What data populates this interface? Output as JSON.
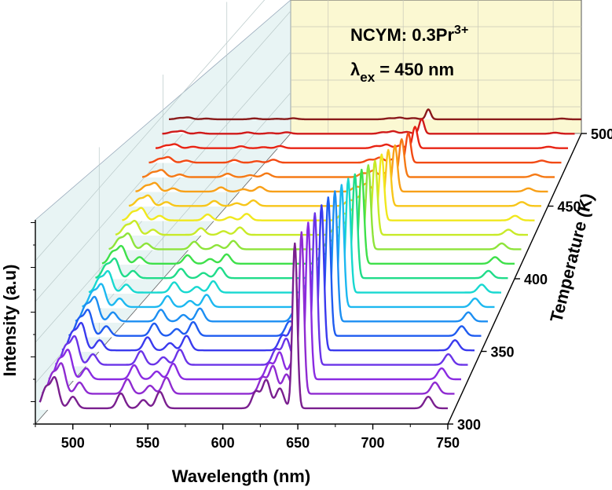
{
  "chart_data": {
    "type": "line",
    "style": "3d-waterfall",
    "xlabel": "Wavelength (nm)",
    "ylabel": "Intensity (a.u)",
    "zlabel": "Temperature (K)",
    "xlim": [
      475,
      750
    ],
    "x_ticks": [
      500,
      550,
      600,
      650,
      700,
      750
    ],
    "z_ticks": [
      300,
      350,
      400,
      450,
      500
    ],
    "zlim": [
      300,
      500
    ],
    "annotations": {
      "line1_main": "NCYM: 0.3Pr",
      "line1_sup": "3+",
      "line2_lambda": "λ",
      "line2_sub": "ex",
      "line2_rest": " = 450 nm"
    },
    "series_temperatures": [
      300,
      310,
      320,
      330,
      340,
      350,
      360,
      370,
      380,
      390,
      400,
      410,
      420,
      430,
      440,
      450,
      460,
      470,
      480,
      490,
      500
    ],
    "series_colors": [
      "#7a1f8f",
      "#8f2bd1",
      "#8a2be2",
      "#6a34e8",
      "#3a3aee",
      "#1f5cf0",
      "#1c8ef2",
      "#1cb8f0",
      "#18d8d0",
      "#20dc8a",
      "#3ee04a",
      "#8ee43a",
      "#c8ea28",
      "#f0e81e",
      "#f7c61a",
      "#f8a018",
      "#f57a16",
      "#f24a14",
      "#e82414",
      "#d01a1a",
      "#8a1a1a"
    ],
    "peaks": [
      {
        "wavelength": 482,
        "relative_intensity": 0.12
      },
      {
        "wavelength": 488,
        "relative_intensity": 0.18
      },
      {
        "wavelength": 500,
        "relative_intensity": 0.07
      },
      {
        "wavelength": 532,
        "relative_intensity": 0.09
      },
      {
        "wavelength": 547,
        "relative_intensity": 0.05
      },
      {
        "wavelength": 558,
        "relative_intensity": 0.1
      },
      {
        "wavelength": 622,
        "relative_intensity": 0.1
      },
      {
        "wavelength": 629,
        "relative_intensity": 0.17
      },
      {
        "wavelength": 638,
        "relative_intensity": 0.12
      },
      {
        "wavelength": 648,
        "relative_intensity": 1.0
      },
      {
        "wavelength": 737,
        "relative_intensity": 0.07
      }
    ],
    "intensity_scale": [
      1.0,
      0.98,
      0.95,
      0.92,
      0.88,
      0.84,
      0.79,
      0.74,
      0.69,
      0.63,
      0.57,
      0.51,
      0.45,
      0.4,
      0.34,
      0.28,
      0.23,
      0.18,
      0.13,
      0.09,
      0.06
    ]
  }
}
